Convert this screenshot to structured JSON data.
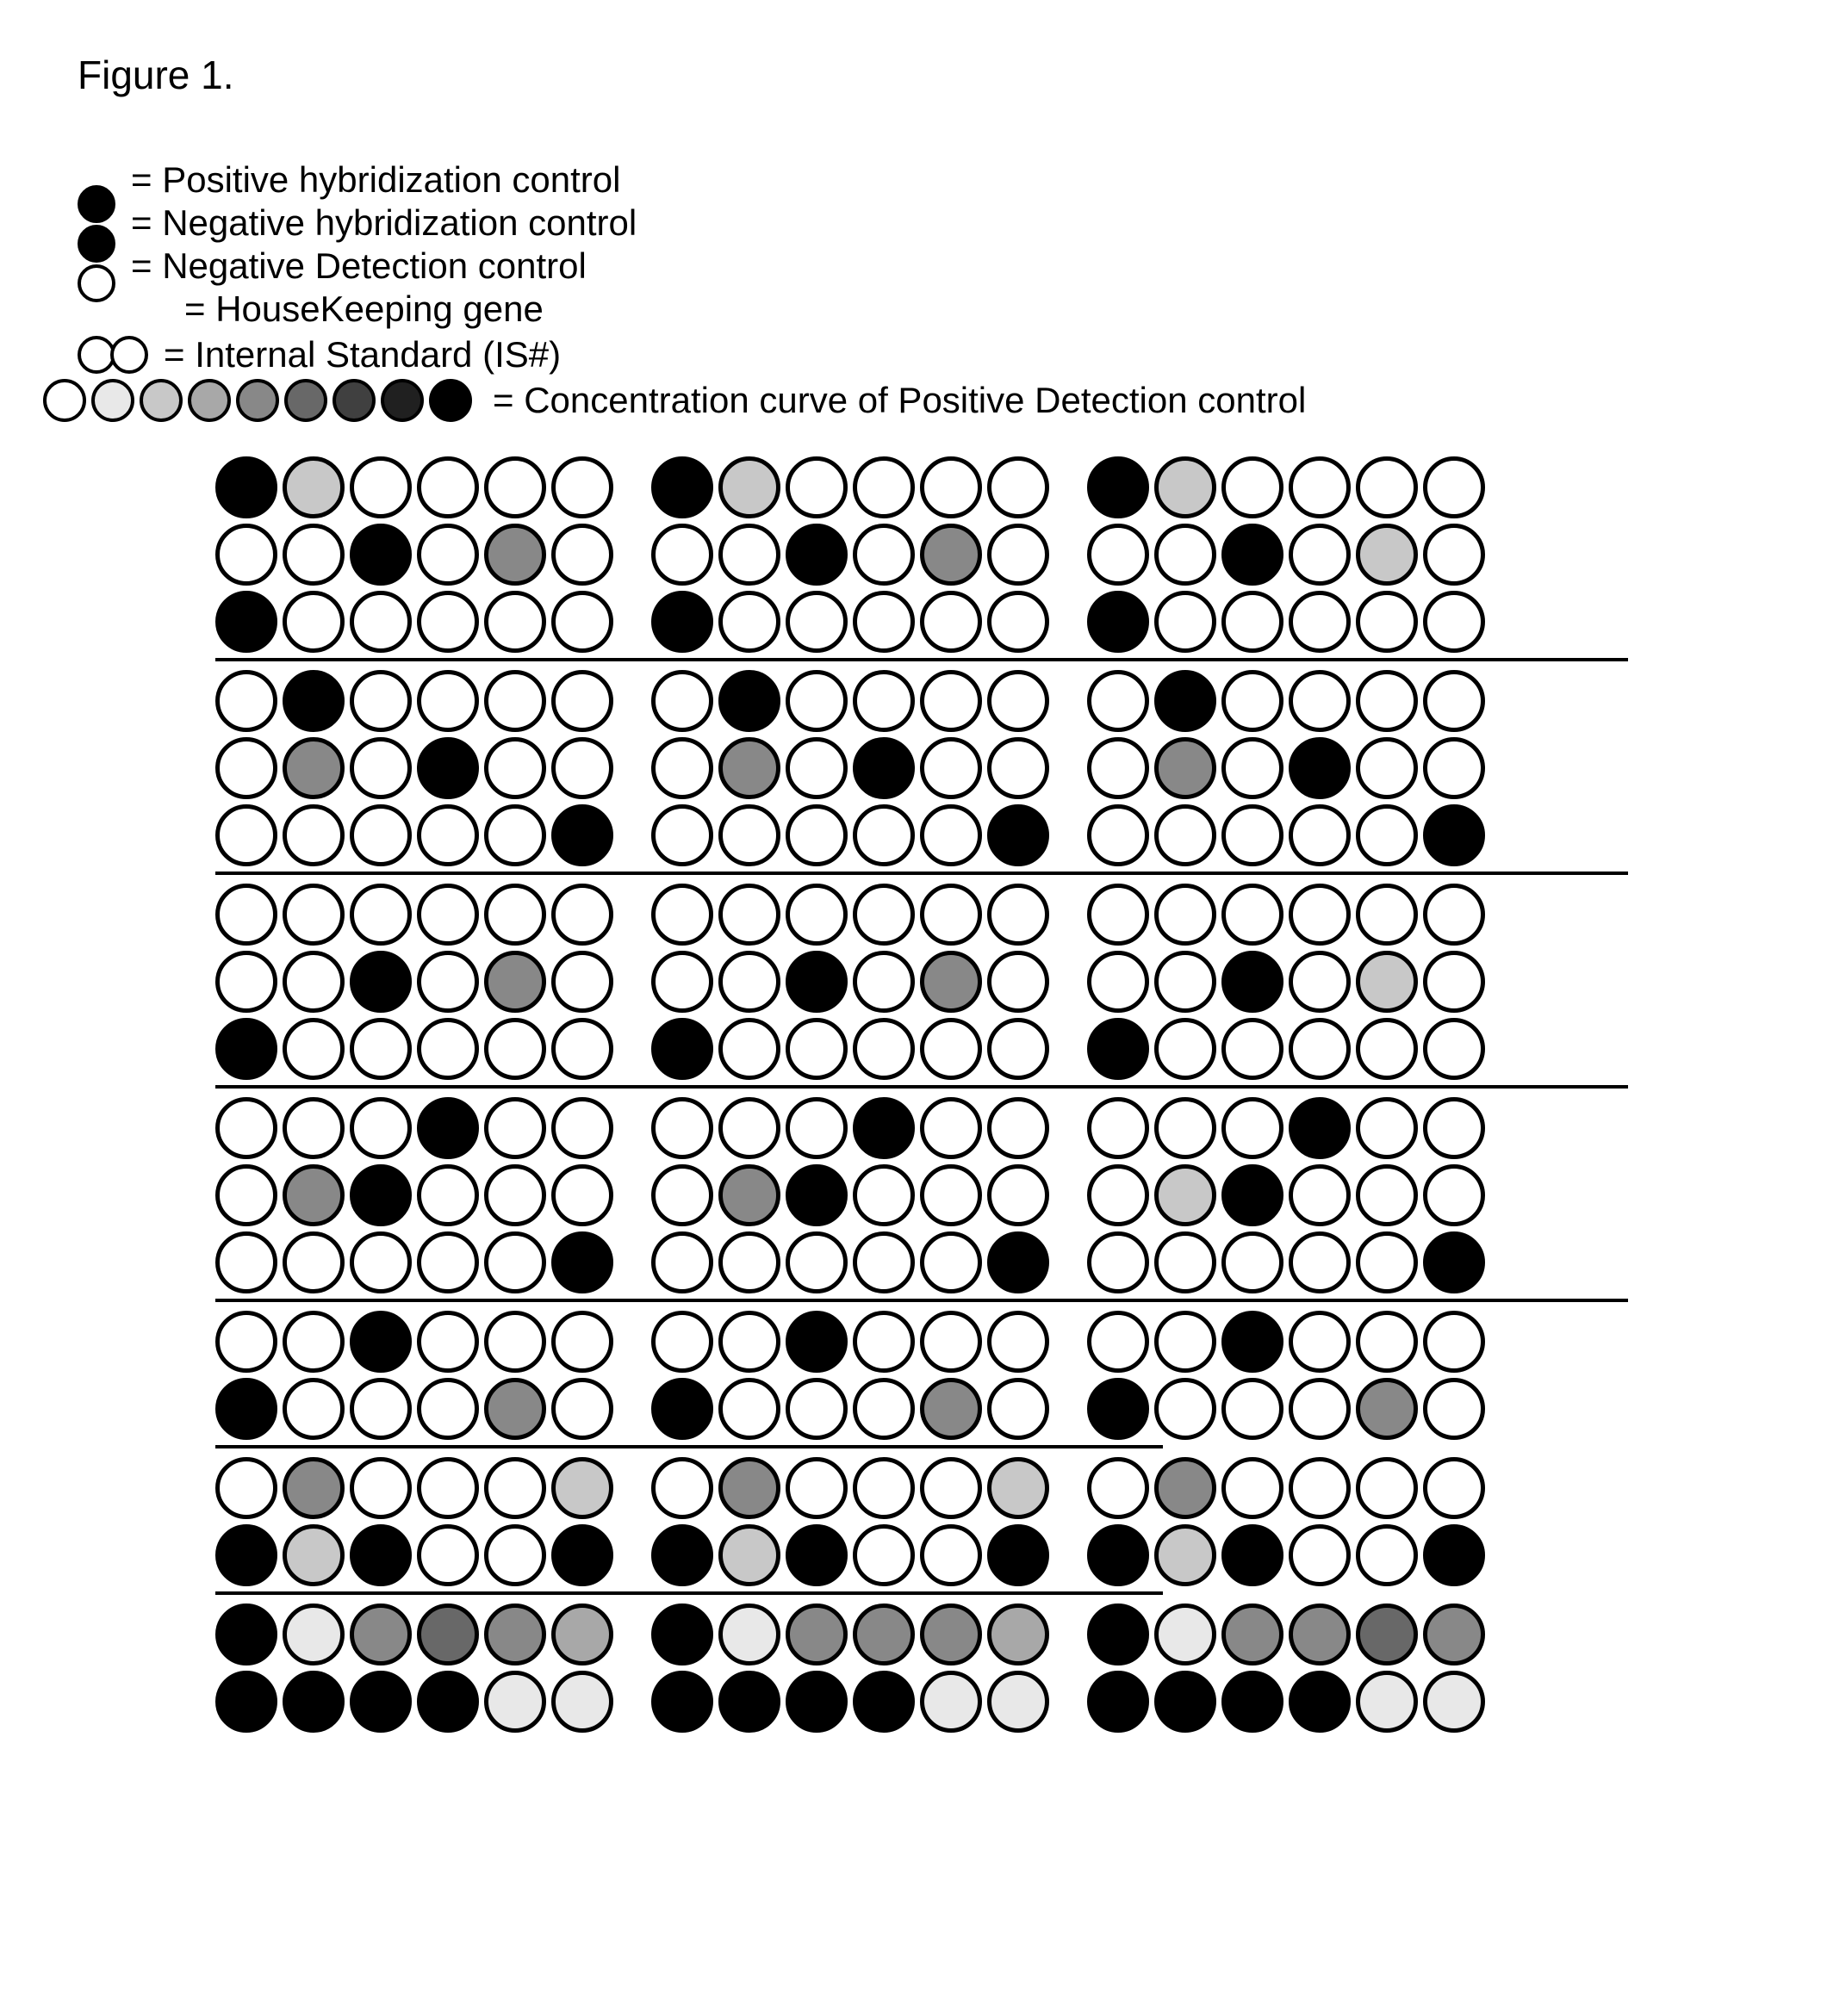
{
  "figure_title": "Figure 1.",
  "colors": {
    "black": "#000000",
    "white": "#ffffff",
    "gray_lightest": "#e8e8e8",
    "gray_light": "#c8c8c8",
    "gray_mid_light": "#a8a8a8",
    "gray_mid": "#888888",
    "gray_mid_dark": "#686868",
    "gray_dark": "#404040",
    "gray_deep": "#202020"
  },
  "circle_style": {
    "diameter_legend": 44,
    "diameter_grid": 72,
    "border_width": 5,
    "border_color": "#000000"
  },
  "legend": {
    "items": [
      {
        "type": "single",
        "fill": "black",
        "label": "= Positive hybridization control"
      },
      {
        "type": "single",
        "fill": "black",
        "label": "= Negative hybridization control"
      },
      {
        "type": "single",
        "fill": "white",
        "label": "= Negative Detection control"
      },
      {
        "type": "none",
        "label": "= HouseKeeping gene"
      },
      {
        "type": "pair",
        "fill": "white",
        "label": "= Internal Standard (IS#)"
      }
    ],
    "gradient_row": {
      "fills": [
        "white",
        "gray_lightest",
        "gray_light",
        "gray_mid_light",
        "gray_mid",
        "gray_mid_dark",
        "gray_dark",
        "gray_deep",
        "black"
      ],
      "label": "= Concentration curve of Positive Detection control"
    }
  },
  "grid": {
    "cell_diameter": 72,
    "row_gap": 6,
    "col_gap": 6,
    "block_gap": 38,
    "blocks_per_row": 3,
    "cols_per_block": 6,
    "sections": [
      {
        "divider_after": true,
        "rows": [
          [
            [
              "black",
              "gray_light",
              "white",
              "white",
              "white",
              "white"
            ],
            [
              "black",
              "gray_light",
              "white",
              "white",
              "white",
              "white"
            ],
            [
              "black",
              "gray_light",
              "white",
              "white",
              "white",
              "white"
            ]
          ],
          [
            [
              "white",
              "white",
              "black",
              "white",
              "gray_mid",
              "white"
            ],
            [
              "white",
              "white",
              "black",
              "white",
              "gray_mid",
              "white"
            ],
            [
              "white",
              "white",
              "black",
              "white",
              "gray_light",
              "white"
            ]
          ],
          [
            [
              "black",
              "white",
              "white",
              "white",
              "white",
              "white"
            ],
            [
              "black",
              "white",
              "white",
              "white",
              "white",
              "white"
            ],
            [
              "black",
              "white",
              "white",
              "white",
              "white",
              "white"
            ]
          ]
        ]
      },
      {
        "divider_after": true,
        "rows": [
          [
            [
              "white",
              "black",
              "white",
              "white",
              "white",
              "white"
            ],
            [
              "white",
              "black",
              "white",
              "white",
              "white",
              "white"
            ],
            [
              "white",
              "black",
              "white",
              "white",
              "white",
              "white"
            ]
          ],
          [
            [
              "white",
              "gray_mid",
              "white",
              "black",
              "white",
              "white"
            ],
            [
              "white",
              "gray_mid",
              "white",
              "black",
              "white",
              "white"
            ],
            [
              "white",
              "gray_mid",
              "white",
              "black",
              "white",
              "white"
            ]
          ],
          [
            [
              "white",
              "white",
              "white",
              "white",
              "white",
              "black"
            ],
            [
              "white",
              "white",
              "white",
              "white",
              "white",
              "black"
            ],
            [
              "white",
              "white",
              "white",
              "white",
              "white",
              "black"
            ]
          ]
        ]
      },
      {
        "divider_after": true,
        "rows": [
          [
            [
              "white",
              "white",
              "white",
              "white",
              "white",
              "white"
            ],
            [
              "white",
              "white",
              "white",
              "white",
              "white",
              "white"
            ],
            [
              "white",
              "white",
              "white",
              "white",
              "white",
              "white"
            ]
          ],
          [
            [
              "white",
              "white",
              "black",
              "white",
              "gray_mid",
              "white"
            ],
            [
              "white",
              "white",
              "black",
              "white",
              "gray_mid",
              "white"
            ],
            [
              "white",
              "white",
              "black",
              "white",
              "gray_light",
              "white"
            ]
          ],
          [
            [
              "black",
              "white",
              "white",
              "white",
              "white",
              "white"
            ],
            [
              "black",
              "white",
              "white",
              "white",
              "white",
              "white"
            ],
            [
              "black",
              "white",
              "white",
              "white",
              "white",
              "white"
            ]
          ]
        ]
      },
      {
        "divider_after": true,
        "rows": [
          [
            [
              "white",
              "white",
              "white",
              "black",
              "white",
              "white"
            ],
            [
              "white",
              "white",
              "white",
              "black",
              "white",
              "white"
            ],
            [
              "white",
              "white",
              "white",
              "black",
              "white",
              "white"
            ]
          ],
          [
            [
              "white",
              "gray_mid",
              "black",
              "white",
              "white",
              "white"
            ],
            [
              "white",
              "gray_mid",
              "black",
              "white",
              "white",
              "white"
            ],
            [
              "white",
              "gray_light",
              "black",
              "white",
              "white",
              "white"
            ]
          ],
          [
            [
              "white",
              "white",
              "white",
              "white",
              "white",
              "black"
            ],
            [
              "white",
              "white",
              "white",
              "white",
              "white",
              "black"
            ],
            [
              "white",
              "white",
              "white",
              "white",
              "white",
              "black"
            ]
          ]
        ]
      },
      {
        "divider_after": true,
        "divider_short": true,
        "rows": [
          [
            [
              "white",
              "white",
              "black",
              "white",
              "white",
              "white"
            ],
            [
              "white",
              "white",
              "black",
              "white",
              "white",
              "white"
            ],
            [
              "white",
              "white",
              "black",
              "white",
              "white",
              "white"
            ]
          ],
          [
            [
              "black",
              "white",
              "white",
              "white",
              "gray_mid",
              "white"
            ],
            [
              "black",
              "white",
              "white",
              "white",
              "gray_mid",
              "white"
            ],
            [
              "black",
              "white",
              "white",
              "white",
              "gray_mid",
              "white"
            ]
          ]
        ]
      },
      {
        "divider_after": true,
        "divider_short": true,
        "rows": [
          [
            [
              "white",
              "gray_mid",
              "white",
              "white",
              "white",
              "gray_light"
            ],
            [
              "white",
              "gray_mid",
              "white",
              "white",
              "white",
              "gray_light"
            ],
            [
              "white",
              "gray_mid",
              "white",
              "white",
              "white",
              "white"
            ]
          ],
          [
            [
              "black",
              "gray_light",
              "black",
              "white",
              "white",
              "black"
            ],
            [
              "black",
              "gray_light",
              "black",
              "white",
              "white",
              "black"
            ],
            [
              "black",
              "gray_light",
              "black",
              "white",
              "white",
              "black"
            ]
          ]
        ]
      },
      {
        "divider_after": false,
        "rows": [
          [
            [
              "black",
              "gray_lightest",
              "gray_mid",
              "gray_mid_dark",
              "gray_mid",
              "gray_mid_light"
            ],
            [
              "black",
              "gray_lightest",
              "gray_mid",
              "gray_mid",
              "gray_mid",
              "gray_mid_light"
            ],
            [
              "black",
              "gray_lightest",
              "gray_mid",
              "gray_mid",
              "gray_mid_dark",
              "gray_mid"
            ]
          ],
          [
            [
              "black",
              "black",
              "black",
              "black",
              "gray_lightest",
              "gray_lightest"
            ],
            [
              "black",
              "black",
              "black",
              "black",
              "gray_lightest",
              "gray_lightest"
            ],
            [
              "black",
              "black",
              "black",
              "black",
              "gray_lightest",
              "gray_lightest"
            ]
          ]
        ]
      }
    ]
  }
}
